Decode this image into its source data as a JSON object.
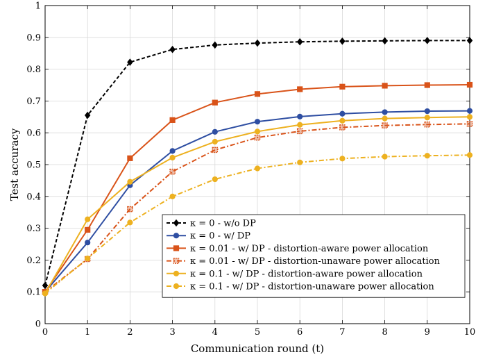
{
  "chart_data": {
    "type": "line",
    "xlabel": "Communication round (t)",
    "ylabel": "Test accuracy",
    "xlim": [
      0,
      10
    ],
    "ylim": [
      0,
      1
    ],
    "x_ticks": [
      "0",
      "1",
      "2",
      "3",
      "4",
      "5",
      "6",
      "7",
      "8",
      "9",
      "10"
    ],
    "y_ticks": [
      "0",
      "0.1",
      "0.2",
      "0.3",
      "0.4",
      "0.5",
      "0.6",
      "0.7",
      "0.8",
      "0.9",
      "1"
    ],
    "grid": true,
    "legend_position": "bottom-right",
    "x": [
      0,
      1,
      2,
      3,
      4,
      5,
      6,
      7,
      8,
      9,
      10
    ],
    "series": [
      {
        "name": "κ = 0 - w/o DP",
        "color": "#000000",
        "dash": "dashed",
        "marker": "diamond",
        "values": [
          0.12,
          0.655,
          0.822,
          0.862,
          0.876,
          0.882,
          0.886,
          0.888,
          0.889,
          0.89,
          0.89
        ]
      },
      {
        "name": "κ = 0 - w/ DP",
        "color": "#2e4ea2",
        "dash": "solid",
        "marker": "circle",
        "values": [
          0.1,
          0.255,
          0.435,
          0.543,
          0.603,
          0.635,
          0.651,
          0.66,
          0.665,
          0.668,
          0.669
        ]
      },
      {
        "name": "κ = 0.01 - w/ DP - distortion-aware power allocation",
        "color": "#d95319",
        "dash": "solid",
        "marker": "square",
        "values": [
          0.1,
          0.295,
          0.52,
          0.64,
          0.695,
          0.722,
          0.737,
          0.745,
          0.748,
          0.75,
          0.751
        ]
      },
      {
        "name": "κ = 0.01 - w/ DP - distortion-unaware power allocation",
        "color": "#d95319",
        "dash": "dashdot",
        "marker": "square-hollow",
        "values": [
          0.1,
          0.203,
          0.36,
          0.478,
          0.546,
          0.585,
          0.605,
          0.617,
          0.623,
          0.626,
          0.628
        ]
      },
      {
        "name": "κ = 0.1 - w/ DP - distortion-aware power allocation",
        "color": "#edb120",
        "dash": "solid",
        "marker": "circle",
        "values": [
          0.095,
          0.328,
          0.446,
          0.522,
          0.572,
          0.604,
          0.625,
          0.638,
          0.645,
          0.648,
          0.65
        ]
      },
      {
        "name": "κ = 0.1 - w/ DP - distortion-unaware power allocation",
        "color": "#edb120",
        "dash": "dashdot",
        "marker": "circle",
        "values": [
          0.095,
          0.205,
          0.318,
          0.4,
          0.454,
          0.488,
          0.507,
          0.519,
          0.525,
          0.528,
          0.53
        ]
      }
    ]
  }
}
